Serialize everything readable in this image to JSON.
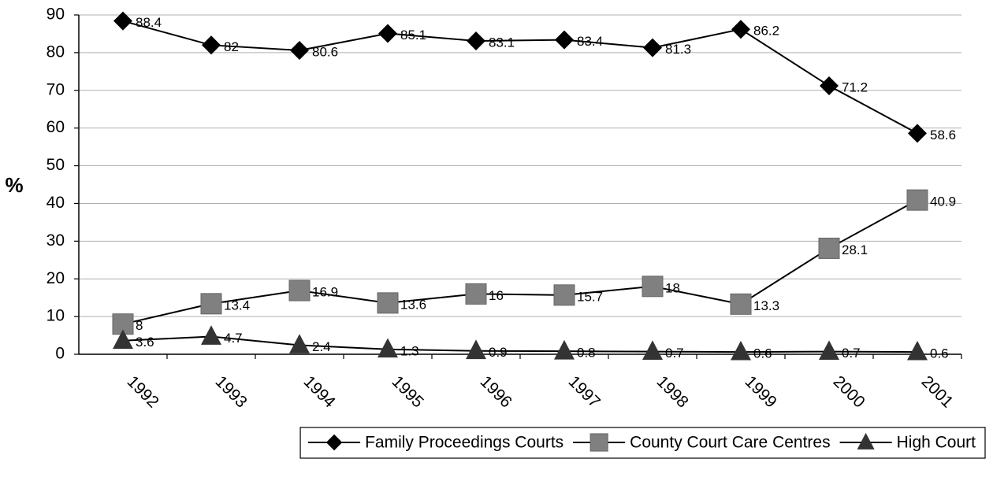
{
  "chart_data": {
    "type": "line",
    "y_label": "%",
    "categories": [
      "1992",
      "1993",
      "1994",
      "1995",
      "1996",
      "1997",
      "1998",
      "1999",
      "2000",
      "2001"
    ],
    "series": [
      {
        "name": "Family Proceedings Courts",
        "color": "#000000",
        "marker": "diamond",
        "values": [
          88.4,
          82,
          80.6,
          85.1,
          83.1,
          83.4,
          81.3,
          86.2,
          71.2,
          58.6
        ]
      },
      {
        "name": "County Court Care Centres",
        "color": "#808080",
        "marker": "square",
        "values": [
          8,
          13.4,
          16.9,
          13.6,
          16,
          15.7,
          18,
          13.3,
          28.1,
          40.9
        ]
      },
      {
        "name": "High Court",
        "color": "#333333",
        "marker": "triangle",
        "values": [
          3.6,
          4.7,
          2.4,
          1.3,
          0.9,
          0.8,
          0.7,
          0.6,
          0.7,
          0.6
        ]
      }
    ],
    "ylim": [
      0,
      90
    ],
    "yticks": [
      0,
      10,
      20,
      30,
      40,
      50,
      60,
      70,
      80,
      90
    ],
    "grid": true,
    "legend": "bottom"
  }
}
